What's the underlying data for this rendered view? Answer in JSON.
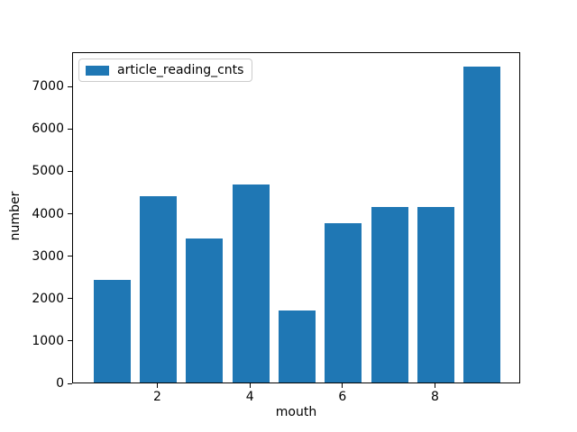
{
  "chart_data": {
    "type": "bar",
    "title": "",
    "xlabel": "mouth",
    "ylabel": "number",
    "x": [
      1,
      2,
      3,
      4,
      5,
      6,
      7,
      8,
      9
    ],
    "series": [
      {
        "name": "article_reading_cnts",
        "values": [
          2430,
          4400,
          3390,
          4670,
          1700,
          3760,
          4140,
          4140,
          7450
        ]
      }
    ],
    "bar_color": "#1f77b4",
    "bar_width": 0.8,
    "xlim": [
      0.16,
      9.84
    ],
    "ylim": [
      0,
      7810
    ],
    "xticks": [
      2,
      4,
      6,
      8
    ],
    "yticks": [
      0,
      1000,
      2000,
      3000,
      4000,
      5000,
      6000,
      7000
    ],
    "grid": false,
    "legend": {
      "label": "article_reading_cnts",
      "position": "upper left"
    }
  }
}
